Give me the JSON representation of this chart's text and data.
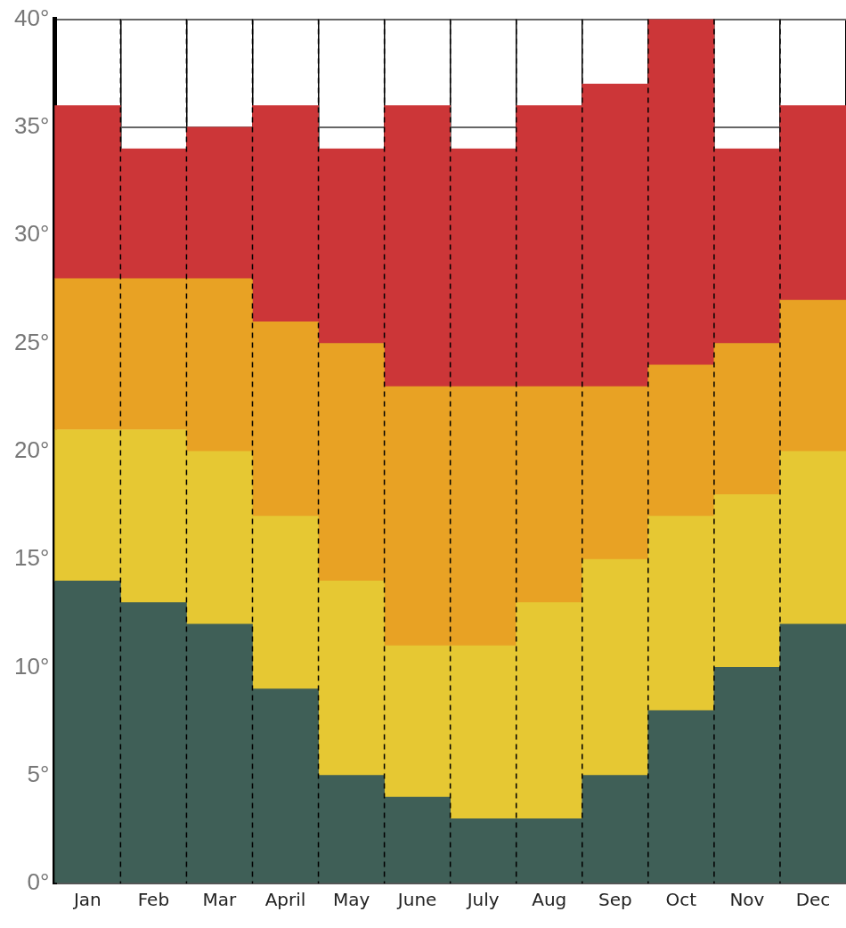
{
  "chart_data": {
    "type": "bar",
    "stacked": true,
    "categories": [
      "Jan",
      "Feb",
      "Mar",
      "April",
      "May",
      "June",
      "July",
      "Aug",
      "Sep",
      "Oct",
      "Nov",
      "Dec"
    ],
    "series": [
      {
        "color": "#3f5f57",
        "values": [
          14,
          13,
          12,
          9,
          5,
          4,
          3,
          3,
          5,
          8,
          10,
          12
        ]
      },
      {
        "color": "#e6c833",
        "values": [
          7,
          8,
          8,
          8,
          9,
          7,
          8,
          10,
          10,
          9,
          8,
          8
        ]
      },
      {
        "color": "#e8a224",
        "values": [
          7,
          7,
          8,
          9,
          11,
          12,
          12,
          10,
          8,
          7,
          7,
          7
        ]
      },
      {
        "color": "#cc3638",
        "values": [
          8,
          6,
          7,
          10,
          9,
          13,
          11,
          13,
          14,
          16,
          9,
          9
        ]
      }
    ],
    "ylim": [
      0,
      40
    ],
    "yticks": [
      {
        "value": 0,
        "label": "0°"
      },
      {
        "value": 5,
        "label": "5°"
      },
      {
        "value": 10,
        "label": "10°"
      },
      {
        "value": 15,
        "label": "15°"
      },
      {
        "value": 20,
        "label": "20°"
      },
      {
        "value": 25,
        "label": "25°"
      },
      {
        "value": 30,
        "label": "30°"
      },
      {
        "value": 35,
        "label": "35°"
      },
      {
        "value": 40,
        "label": "40°"
      }
    ],
    "grid": true,
    "legend": false
  }
}
